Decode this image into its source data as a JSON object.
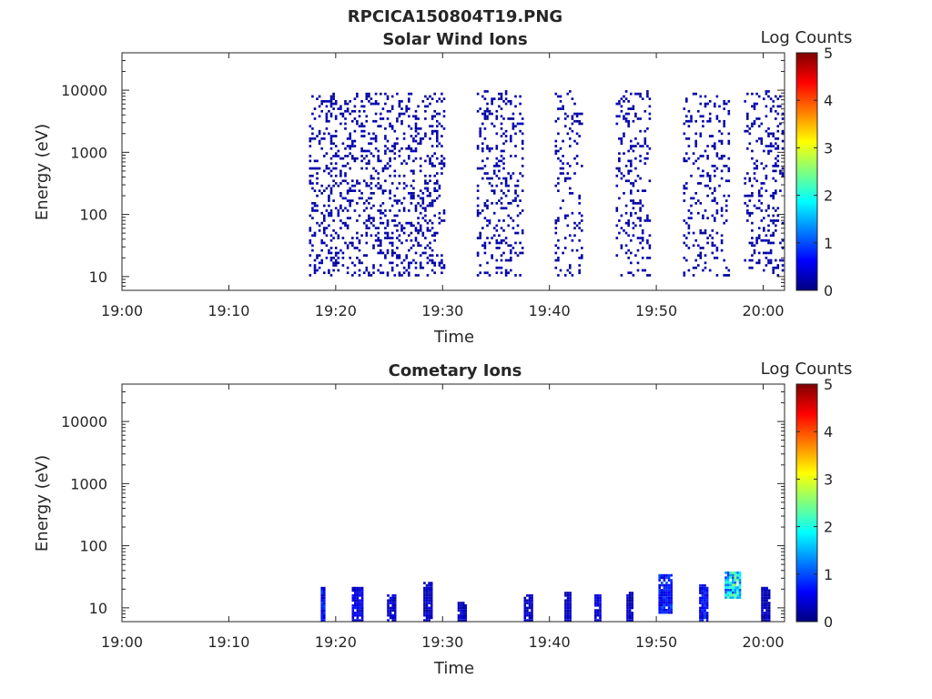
{
  "figure_title": "RPCICA150804T19.PNG",
  "colorbar": {
    "label": "Log Counts",
    "range": [
      0,
      5
    ],
    "ticks": [
      "0",
      "1",
      "2",
      "3",
      "4",
      "5"
    ],
    "colormap": "jet"
  },
  "chart_data": [
    {
      "type": "heatmap",
      "title": "Solar Wind Ions",
      "xlabel": "Time",
      "ylabel": "Energy (eV)",
      "x_ticks": [
        "19:00",
        "19:10",
        "19:20",
        "19:30",
        "19:40",
        "19:50",
        "20:00"
      ],
      "xlim_minutes": [
        0,
        62
      ],
      "y_ticks": [
        "10",
        "100",
        "1000",
        "10000"
      ],
      "y_scale": "log",
      "ylim": [
        6,
        40000
      ],
      "bands": [
        {
          "t": [
            17.5,
            30.2
          ],
          "e": [
            10,
            9000
          ],
          "density": 0.22,
          "level": 0.2
        },
        {
          "t": [
            33.2,
            37.6
          ],
          "e": [
            10,
            10000
          ],
          "density": 0.18,
          "level": 0.2
        },
        {
          "t": [
            40.5,
            43.2
          ],
          "e": [
            10,
            10000
          ],
          "density": 0.16,
          "level": 0.2
        },
        {
          "t": [
            46.2,
            49.5
          ],
          "e": [
            10,
            10000
          ],
          "density": 0.17,
          "level": 0.2
        },
        {
          "t": [
            52.5,
            57.0
          ],
          "e": [
            10,
            9000
          ],
          "density": 0.15,
          "level": 0.2
        },
        {
          "t": [
            58.2,
            62.0
          ],
          "e": [
            10,
            10000
          ],
          "density": 0.18,
          "level": 0.2
        }
      ]
    },
    {
      "type": "heatmap",
      "title": "Cometary Ions",
      "xlabel": "Time",
      "ylabel": "Energy (eV)",
      "x_ticks": [
        "19:00",
        "19:10",
        "19:20",
        "19:30",
        "19:40",
        "19:50",
        "20:00"
      ],
      "xlim_minutes": [
        0,
        62
      ],
      "y_ticks": [
        "10",
        "100",
        "1000",
        "10000"
      ],
      "y_scale": "log",
      "ylim": [
        6,
        40000
      ],
      "bands": [
        {
          "t": [
            18.6,
            19.0
          ],
          "e": [
            6,
            22
          ],
          "density": 0.9,
          "level": 0.6
        },
        {
          "t": [
            21.5,
            22.7
          ],
          "e": [
            6,
            22
          ],
          "density": 0.9,
          "level": 0.5
        },
        {
          "t": [
            24.8,
            25.6
          ],
          "e": [
            6,
            16
          ],
          "density": 0.9,
          "level": 0.4
        },
        {
          "t": [
            28.2,
            29.0
          ],
          "e": [
            6,
            26
          ],
          "density": 0.9,
          "level": 0.3
        },
        {
          "t": [
            31.4,
            32.2
          ],
          "e": [
            6,
            12
          ],
          "density": 0.9,
          "level": 0.3
        },
        {
          "t": [
            37.6,
            38.4
          ],
          "e": [
            6,
            16
          ],
          "density": 0.9,
          "level": 0.3
        },
        {
          "t": [
            41.4,
            42.0
          ],
          "e": [
            6,
            18
          ],
          "density": 0.9,
          "level": 0.3
        },
        {
          "t": [
            44.2,
            44.8
          ],
          "e": [
            6,
            16
          ],
          "density": 0.9,
          "level": 0.5
        },
        {
          "t": [
            47.2,
            47.8
          ],
          "e": [
            6,
            18
          ],
          "density": 0.9,
          "level": 0.3
        },
        {
          "t": [
            50.2,
            51.6
          ],
          "e": [
            8,
            35
          ],
          "density": 0.9,
          "level": 0.7
        },
        {
          "t": [
            54.0,
            54.8
          ],
          "e": [
            6,
            25
          ],
          "density": 0.9,
          "level": 0.6
        },
        {
          "t": [
            56.4,
            58.0
          ],
          "e": [
            14,
            40
          ],
          "density": 0.9,
          "level": 1.8
        },
        {
          "t": [
            59.8,
            60.6
          ],
          "e": [
            6,
            22
          ],
          "density": 0.9,
          "level": 0.3
        }
      ]
    }
  ]
}
